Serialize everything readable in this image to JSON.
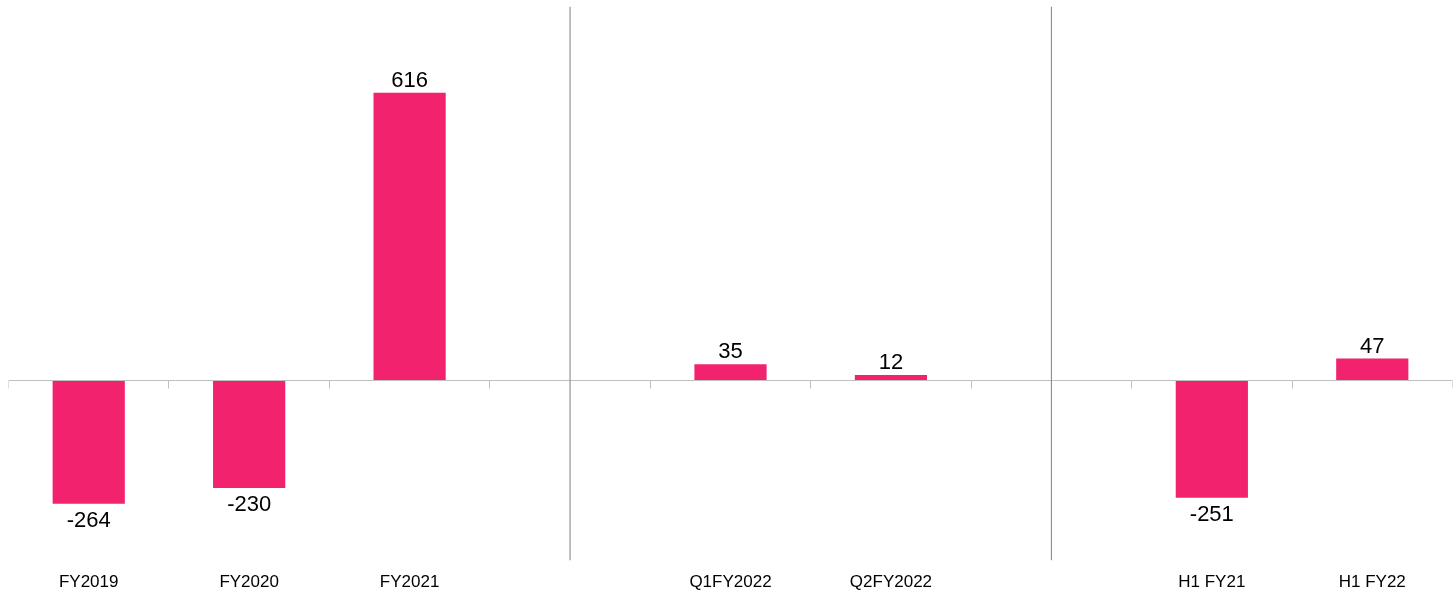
{
  "chart_data": {
    "type": "bar",
    "categories": [
      "FY2019",
      "FY2020",
      "FY2021",
      null,
      "Q1FY2022",
      "Q2FY2022",
      null,
      "H1 FY21",
      "H1 FY22"
    ],
    "values": [
      -264,
      -230,
      616,
      null,
      35,
      12,
      null,
      -251,
      47
    ],
    "color": "#f2226e",
    "data_labels": true
  }
}
